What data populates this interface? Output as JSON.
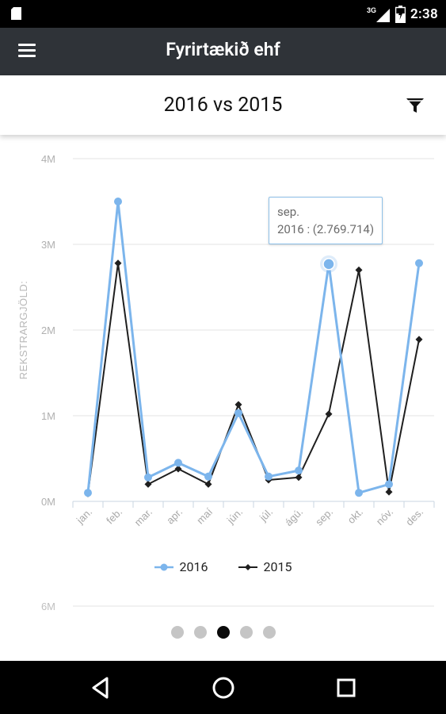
{
  "status_bar": {
    "time": "2:38",
    "network": "3G"
  },
  "app_bar": {
    "title": "Fyrirtækið ehf"
  },
  "header": {
    "title": "2016 vs 2015"
  },
  "chart_data": {
    "type": "line",
    "ylabel": "REKSTRARGJÖLD:",
    "ylim": [
      0,
      4000000
    ],
    "y_ticks": [
      "0M",
      "1M",
      "2M",
      "3M",
      "4M"
    ],
    "next_chart_top_tick": "6M",
    "categories": [
      "jan.",
      "feb.",
      "mar.",
      "apr.",
      "maí",
      "jún.",
      "júl.",
      "ágú.",
      "sep.",
      "okt.",
      "nóv.",
      "des."
    ],
    "series": [
      {
        "name": "2016",
        "color": "#7cb5ec",
        "values": [
          100000,
          3500000,
          280000,
          450000,
          290000,
          1030000,
          290000,
          360000,
          2769714,
          100000,
          200000,
          2780000
        ]
      },
      {
        "name": "2015",
        "color": "#1f1f1f",
        "values": [
          90000,
          2780000,
          200000,
          380000,
          200000,
          1130000,
          250000,
          280000,
          1020000,
          2700000,
          110000,
          1890000
        ]
      }
    ],
    "tooltip": {
      "category": "sep.",
      "label": "2016 : (2.769.714)"
    }
  },
  "pager": {
    "count": 5,
    "active": 2
  },
  "colors": {
    "status_bar": "#000000",
    "app_bar": "#2f3338",
    "series_2016": "#7cb5ec",
    "series_2015": "#1f1f1f"
  }
}
